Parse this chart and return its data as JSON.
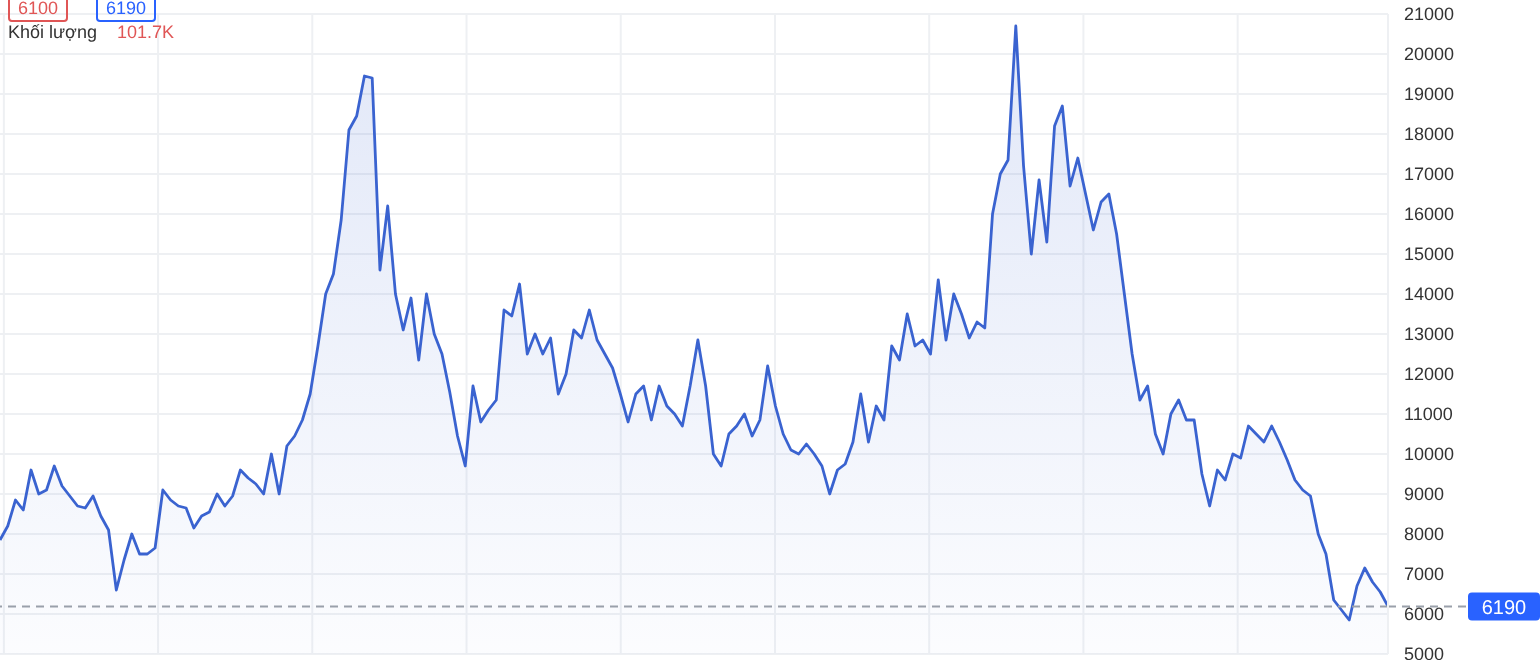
{
  "chart_data": {
    "type": "area",
    "categories": [
      null,
      null,
      null,
      null,
      null,
      null,
      null,
      null,
      null,
      null,
      null,
      null,
      null,
      null,
      null,
      null,
      null,
      null,
      null,
      null,
      null,
      null,
      null,
      null,
      null,
      null,
      null,
      null,
      null,
      null,
      null,
      null,
      null,
      null,
      null,
      null,
      null,
      null,
      null,
      null,
      null,
      null,
      null,
      null,
      null,
      null,
      null,
      null,
      null,
      null,
      null,
      null,
      null,
      null,
      null,
      null,
      null,
      null,
      null,
      null,
      null,
      null,
      null,
      null,
      null,
      null,
      null,
      null,
      null,
      null,
      null,
      null,
      null,
      null,
      null,
      null,
      null,
      null,
      null,
      null,
      null,
      null,
      null,
      null,
      null,
      null,
      null,
      null,
      null,
      null,
      null,
      null,
      null,
      null,
      null,
      null,
      null,
      null,
      null,
      null,
      null,
      null,
      null,
      null,
      null,
      null,
      null,
      null,
      null,
      null,
      null,
      null,
      null,
      null,
      null,
      null,
      null,
      null,
      null,
      null,
      null,
      null,
      null,
      null,
      null,
      null,
      null,
      null,
      null,
      null,
      null,
      null,
      null,
      null,
      null,
      null,
      null,
      null,
      null,
      null,
      null,
      null,
      null,
      null,
      null,
      null,
      null,
      null,
      null,
      null,
      null,
      null,
      null,
      null,
      null,
      null,
      null,
      null,
      null,
      null,
      null,
      null,
      null,
      null,
      null,
      null,
      null,
      null,
      null,
      null,
      null,
      null,
      null,
      null,
      null,
      null,
      null,
      null,
      null,
      null
    ],
    "series": [
      {
        "color": "#3a63d0",
        "values": [
          7850,
          8200,
          8850,
          8600,
          9600,
          9000,
          9100,
          9700,
          9200,
          8950,
          8700,
          8650,
          8950,
          8450,
          8100,
          6600,
          7350,
          8000,
          7500,
          7500,
          7650,
          9100,
          8850,
          8700,
          8650,
          8150,
          8450,
          8550,
          9000,
          8700,
          8950,
          9600,
          9400,
          9250,
          9000,
          10000,
          9000,
          10200,
          10450,
          10850,
          11500,
          12700,
          14000,
          14500,
          15850,
          18100,
          18450,
          19450,
          19400,
          14600,
          16200,
          14000,
          13100,
          13900,
          12350,
          14000,
          13000,
          12500,
          11550,
          10450,
          9700,
          11700,
          10800,
          11100,
          11350,
          13600,
          13450,
          14250,
          12500,
          13000,
          12500,
          12900,
          11500,
          12000,
          13100,
          12900,
          13600,
          12850,
          12500,
          12150,
          11500,
          10800,
          11500,
          11700,
          10850,
          11700,
          11200,
          11000,
          10700,
          11700,
          12850,
          11700,
          10000,
          9700,
          10500,
          10700,
          11000,
          10450,
          10850,
          12200,
          11200,
          10500,
          10100,
          10000,
          10250,
          10000,
          9700,
          9000,
          9600,
          9750,
          10300,
          11500,
          10300,
          11200,
          10850,
          12700,
          12350,
          13500,
          12700,
          12850,
          12500,
          14350,
          12850,
          14000,
          13500,
          12900,
          13300,
          13150,
          16000,
          17000,
          17350,
          20700,
          17200,
          15000,
          16850,
          15300,
          18200,
          18700,
          16700,
          17400,
          16500,
          15600,
          16300,
          16500,
          15500,
          14000,
          12500,
          11350,
          11700,
          10500,
          10000,
          11000,
          11350,
          10850,
          10850,
          9500,
          8700,
          9600,
          9350,
          10000,
          9900,
          10700,
          10500,
          10300,
          10700,
          10300,
          9850,
          9350,
          9100,
          8950,
          8000,
          7500,
          6350,
          6100,
          5850,
          6700,
          7150,
          6800,
          6550,
          6190
        ]
      }
    ],
    "ylim": [
      5000,
      21000
    ],
    "yticks": [
      5000,
      6000,
      7000,
      8000,
      9000,
      10000,
      11000,
      12000,
      13000,
      14000,
      15000,
      16000,
      17000,
      18000,
      19000,
      20000,
      21000
    ],
    "tick_labels": "y",
    "grid": true,
    "legend": false,
    "ref_lines": [
      {
        "axis": "y",
        "value": 6190,
        "label": "6190",
        "color": "#9aa0aa",
        "line_style": "dashed"
      }
    ],
    "annotations": [
      "6100",
      "6190",
      "Khối lượng",
      "101.7K"
    ]
  }
}
